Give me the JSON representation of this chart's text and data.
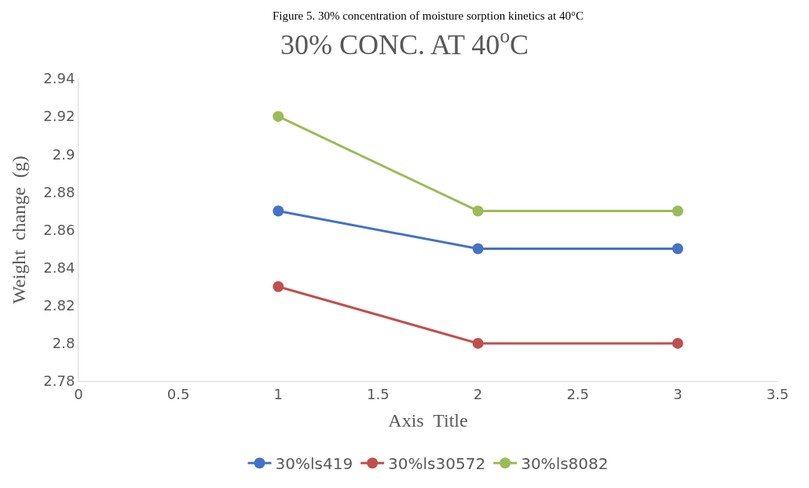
{
  "chart_data": {
    "type": "line",
    "title": "30% CONC. AT 40$^{o}$C",
    "xlabel": "Axis  Title",
    "ylabel": "Weight  change  (g)",
    "annotations": [
      "Figure 5. 30% concentration of moisture sorption kinetics at 40°C"
    ],
    "x": [
      1,
      2,
      3
    ],
    "series": [
      {
        "name": "30%ls419",
        "color": "#4472c4",
        "values": [
          2.87,
          2.85,
          2.85
        ]
      },
      {
        "name": "30%ls30572",
        "color": "#c0504d",
        "values": [
          2.83,
          2.8,
          2.8
        ]
      },
      {
        "name": "30%ls8082",
        "color": "#9bbb59",
        "values": [
          2.92,
          2.87,
          2.87
        ]
      }
    ],
    "xlim": [
      0,
      3.5
    ],
    "xticks": [
      0,
      0.5,
      1,
      1.5,
      2,
      2.5,
      3,
      3.5
    ],
    "ylim": [
      2.78,
      2.94
    ],
    "yticks": [
      2.78,
      2.8,
      2.82,
      2.84,
      2.86,
      2.88,
      2.9,
      2.92,
      2.94
    ],
    "grid": false,
    "legend": "bottom",
    "marker": "circle",
    "line_style": "solid"
  }
}
